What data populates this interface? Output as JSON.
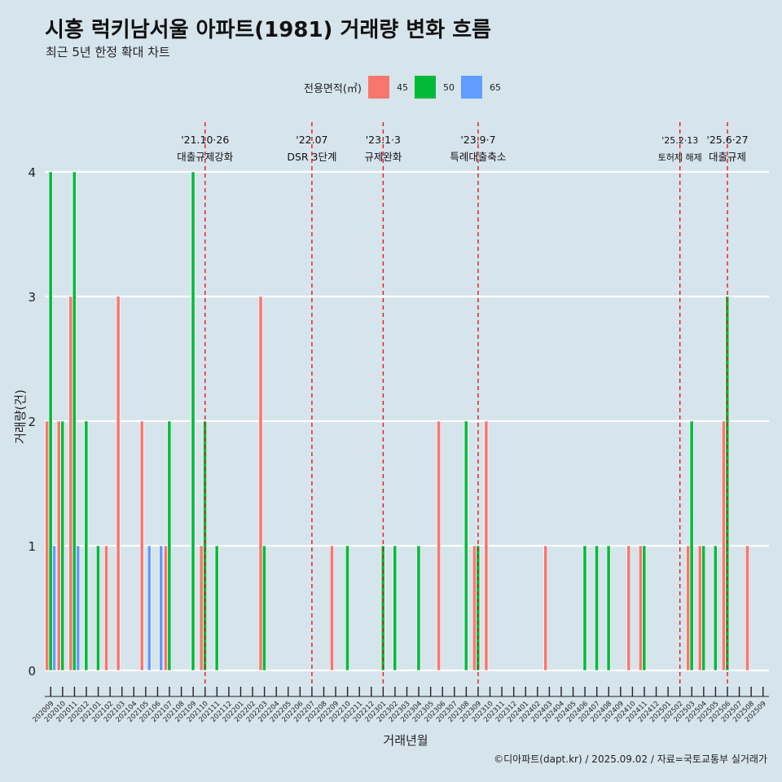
{
  "title": "시흥 럭키남서울 아파트(1981) 거래량 변화 흐름",
  "subtitle": "최근 5년 한정 확대 차트",
  "caption": "©디아파트(dapt.kr) / 2025.09.02 / 자료=국토교통부 실거래가",
  "colors": {
    "45": "#f8766d",
    "50": "#00ba38",
    "65": "#619cff",
    "event_line": "#e31a1c"
  },
  "chart_data": {
    "type": "bar",
    "xlabel": "거래년월",
    "ylabel": "거래량(건)",
    "ylim": [
      0,
      4
    ],
    "yticks": [
      0,
      1,
      2,
      3,
      4
    ],
    "grid": true,
    "legend": {
      "title": "전용면적(㎡)",
      "position": "top",
      "entries": [
        "45",
        "50",
        "65"
      ]
    },
    "categories": [
      "202009",
      "202010",
      "202011",
      "202012",
      "202101",
      "202102",
      "202103",
      "202104",
      "202105",
      "202106",
      "202107",
      "202108",
      "202109",
      "202110",
      "202111",
      "202112",
      "202201",
      "202202",
      "202203",
      "202204",
      "202205",
      "202206",
      "202207",
      "202208",
      "202209",
      "202210",
      "202211",
      "202212",
      "202301",
      "202302",
      "202303",
      "202304",
      "202305",
      "202306",
      "202307",
      "202308",
      "202309",
      "202310",
      "202311",
      "202312",
      "202401",
      "202402",
      "202403",
      "202404",
      "202405",
      "202406",
      "202407",
      "202408",
      "202409",
      "202410",
      "202411",
      "202412",
      "202501",
      "202502",
      "202503",
      "202504",
      "202505",
      "202506",
      "202507",
      "202508",
      "202509"
    ],
    "series": [
      {
        "name": "45",
        "values": [
          2,
          2,
          3,
          0,
          0,
          1,
          3,
          0,
          2,
          0,
          1,
          0,
          0,
          1,
          0,
          0,
          0,
          0,
          3,
          0,
          0,
          0,
          0,
          0,
          1,
          0,
          0,
          0,
          0,
          0,
          0,
          0,
          0,
          2,
          0,
          0,
          1,
          2,
          0,
          0,
          0,
          0,
          1,
          0,
          0,
          0,
          0,
          0,
          0,
          1,
          1,
          0,
          0,
          0,
          1,
          1,
          0,
          2,
          0,
          1,
          0
        ]
      },
      {
        "name": "50",
        "values": [
          4,
          2,
          4,
          2,
          1,
          0,
          0,
          0,
          0,
          0,
          2,
          0,
          4,
          2,
          1,
          0,
          0,
          0,
          1,
          0,
          0,
          0,
          0,
          0,
          0,
          1,
          0,
          0,
          1,
          1,
          0,
          1,
          0,
          0,
          0,
          2,
          1,
          0,
          0,
          0,
          0,
          0,
          0,
          0,
          0,
          1,
          1,
          1,
          0,
          0,
          1,
          0,
          0,
          0,
          2,
          1,
          1,
          3,
          0,
          0,
          0
        ]
      },
      {
        "name": "65",
        "values": [
          1,
          0,
          1,
          0,
          0,
          0,
          0,
          0,
          1,
          1,
          0,
          0,
          0,
          0,
          0,
          0,
          0,
          0,
          0,
          0,
          0,
          0,
          0,
          0,
          0,
          0,
          0,
          0,
          0,
          0,
          0,
          0,
          0,
          0,
          0,
          0,
          0,
          0,
          0,
          0,
          0,
          0,
          0,
          0,
          0,
          0,
          0,
          0,
          0,
          0,
          0,
          0,
          0,
          0,
          0,
          0,
          0,
          0,
          0,
          0,
          0
        ]
      }
    ],
    "annotations": [
      {
        "x": "202110",
        "date": "'21.10·26",
        "label": "대출규제강화"
      },
      {
        "x": "202207",
        "date": "'22.07",
        "label": "DSR 3단계"
      },
      {
        "x": "202301",
        "date": "'23.1·3",
        "label": "규제완화"
      },
      {
        "x": "202309",
        "date": "'23.9·7",
        "label": "특례대출축소"
      },
      {
        "x": "202502",
        "date": "'25.2·13",
        "label": "토허제 해제"
      },
      {
        "x": "202506",
        "date": "'25.6·27",
        "label": "대출규제"
      }
    ]
  }
}
